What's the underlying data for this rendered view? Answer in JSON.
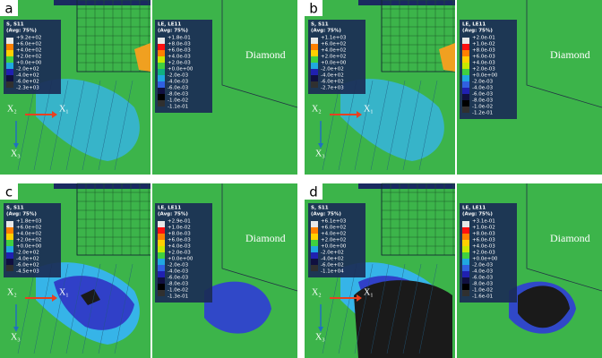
{
  "panels": [
    {
      "label": "a",
      "stress_legend": {
        "title": "S, S11",
        "subtitle": "(Avg: 75%)",
        "values": [
          "+9.2e+02",
          "+6.0e+02",
          "+4.0e+02",
          "+2.0e+02",
          "+0.0e+00",
          "-2.0e+02",
          "-4.0e+02",
          "-6.0e+02",
          "-2.3e+03"
        ]
      },
      "strain_legend": {
        "title": "LE, LE11",
        "subtitle": "(Avg: 75%)",
        "values": [
          "+1.8e-01",
          "+8.0e-03",
          "+6.0e-03",
          "+4.0e-03",
          "+2.0e-03",
          "+0.0e+00",
          "-2.0e-03",
          "-4.0e-03",
          "-6.0e-03",
          "-8.0e-03",
          "-1.0e-02",
          "-1.1e-01"
        ]
      },
      "material": "Diamond",
      "axes": [
        "X₂",
        "X₁",
        "X₃"
      ]
    },
    {
      "label": "b",
      "stress_legend": {
        "title": "S, S11",
        "subtitle": "(Avg: 75%)",
        "values": [
          "+1.1e+03",
          "+6.0e+02",
          "+4.0e+02",
          "+2.0e+02",
          "+0.0e+00",
          "-2.0e+02",
          "-4.0e+02",
          "-6.0e+02",
          "-2.7e+03"
        ]
      },
      "strain_legend": {
        "title": "LE, LE11",
        "subtitle": "(Avg: 75%)",
        "values": [
          "+2.0e-01",
          "+1.0e-02",
          "+8.0e-03",
          "+6.0e-03",
          "+4.0e-03",
          "+2.0e-03",
          "+0.0e+00",
          "-2.0e-03",
          "-4.0e-03",
          "-6.0e-03",
          "-8.0e-03",
          "-1.0e-02",
          "-1.2e-01"
        ]
      },
      "material": "Diamond",
      "axes": [
        "X₂",
        "X₁",
        "X₃"
      ]
    },
    {
      "label": "c",
      "stress_legend": {
        "title": "S, S11",
        "subtitle": "(Avg: 75%)",
        "values": [
          "+1.8e+03",
          "+6.0e+02",
          "+4.0e+02",
          "+2.0e+02",
          "+0.0e+00",
          "-2.0e+02",
          "-4.0e+02",
          "-6.0e+02",
          "-4.5e+03"
        ]
      },
      "strain_legend": {
        "title": "LE, LE11",
        "subtitle": "(Avg: 75%)",
        "values": [
          "+2.9e-01",
          "+1.0e-02",
          "+8.0e-03",
          "+6.0e-03",
          "+4.0e-03",
          "+2.0e-03",
          "+0.0e+00",
          "-2.0e-03",
          "-4.0e-03",
          "-6.0e-03",
          "-8.0e-03",
          "-1.0e-02",
          "-1.3e-01"
        ]
      },
      "material": "Diamond",
      "axes": [
        "X₂",
        "X₁",
        "X₃"
      ]
    },
    {
      "label": "d",
      "stress_legend": {
        "title": "S, S11",
        "subtitle": "(Avg: 75%)",
        "values": [
          "+6.1e+03",
          "+6.0e+02",
          "+4.0e+02",
          "+2.0e+02",
          "+0.0e+00",
          "-2.0e+02",
          "-4.0e+02",
          "-6.0e+02",
          "-1.1e+04"
        ]
      },
      "strain_legend": {
        "title": "LE, LE11",
        "subtitle": "(Avg: 75%)",
        "values": [
          "+3.1e-01",
          "+1.0e-02",
          "+8.0e-03",
          "+6.0e-03",
          "+4.0e-03",
          "+2.0e-03",
          "+0.0e+00",
          "-2.0e-03",
          "-4.0e-03",
          "-6.0e-03",
          "-8.0e-03",
          "-1.0e-02",
          "-1.6e-01"
        ]
      },
      "material": "Diamond",
      "axes": [
        "X₂",
        "X₁",
        "X₃"
      ]
    }
  ]
}
